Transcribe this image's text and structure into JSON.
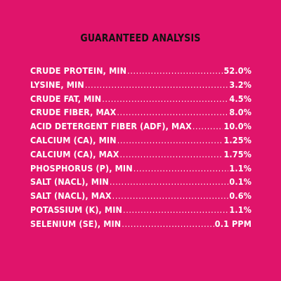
{
  "title": "GUARANTEED ANALYSIS",
  "colors": {
    "background": "#e0146b",
    "title": "#111111",
    "text": "#ffffff"
  },
  "rows": [
    {
      "label": "CRUDE PROTEIN, MIN",
      "value": "52.0%"
    },
    {
      "label": "LYSINE, MIN",
      "value": "3.2%"
    },
    {
      "label": "CRUDE FAT, MIN",
      "value": "4.5%"
    },
    {
      "label": "CRUDE FIBER, MAX",
      "value": "8.0%"
    },
    {
      "label": "ACID DETERGENT FIBER (ADF), MAX",
      "value": "10.0%"
    },
    {
      "label": "CALCIUM (CA), MIN",
      "value": "1.25%"
    },
    {
      "label": "CALCIUM (CA), MAX",
      "value": "1.75%"
    },
    {
      "label": "PHOSPHORUS (P), MIN",
      "value": "1.1%"
    },
    {
      "label": "SALT (NACL), MIN",
      "value": "0.1%"
    },
    {
      "label": "SALT (NACL), MAX",
      "value": "0.6%"
    },
    {
      "label": "POTASSIUM (K), MIN",
      "value": "1.1%"
    },
    {
      "label": "SELENIUM (SE), MIN",
      "value": "0.1 PPM"
    }
  ]
}
